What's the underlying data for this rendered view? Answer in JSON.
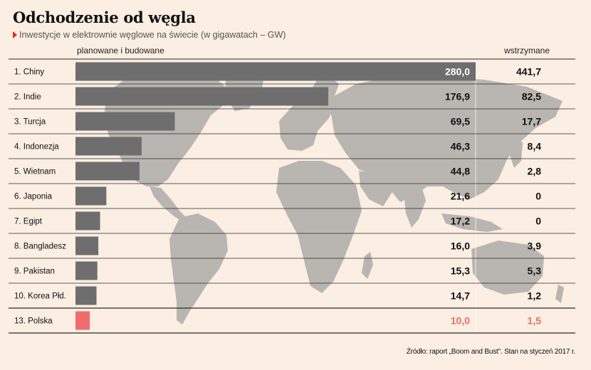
{
  "header": {
    "title": "Odchodzenie od węgla",
    "subtitle": "Inwestycje w elektrownie węglowe na świecie (w gigawatach – GW)"
  },
  "columns": {
    "planned": "planowane i budowane",
    "halted": "wstrzymane"
  },
  "footer": {
    "source": "Źródło: raport „Boom and Bust\". Stan na styczeń 2017 r."
  },
  "colors": {
    "background": "#fbeee2",
    "bar": "#6e6e6e",
    "highlight": "#f06b6b",
    "map": "#b9b5b0",
    "divider": "#2b2b2b"
  },
  "chart_data": {
    "type": "table",
    "title": "Odchodzenie od węgla",
    "subtitle": "Inwestycje w elektrownie węglowe na świecie (w gigawatach – GW)",
    "unit": "GW",
    "xlim": [
      0,
      280
    ],
    "categories": [
      "1. Chiny",
      "2. Indie",
      "3. Turcja",
      "4. Indonezja",
      "5. Wietnam",
      "6. Japonia",
      "7. Egipt",
      "8. Bangladesz",
      "9. Pakistan",
      "10. Korea Płd.",
      "13. Polska"
    ],
    "series": [
      {
        "name": "planowane i budowane",
        "values": [
          280.0,
          176.9,
          69.5,
          46.3,
          44.8,
          21.6,
          17.2,
          16.0,
          15.3,
          14.7,
          10.0
        ],
        "labels": [
          "280,0",
          "176,9",
          "69,5",
          "46,3",
          "44,8",
          "21,6",
          "17,2",
          "16,0",
          "15,3",
          "14,7",
          "10,0"
        ]
      },
      {
        "name": "wstrzymane",
        "values": [
          441.7,
          82.5,
          17.7,
          8.4,
          2.8,
          0,
          0,
          3.9,
          5.3,
          1.2,
          1.5
        ],
        "labels": [
          "441,7",
          "82,5",
          "17,7",
          "8,4",
          "2,8",
          "0",
          "0",
          "3,9",
          "5,3",
          "1,2",
          "1,5"
        ]
      }
    ],
    "highlight": "13. Polska"
  }
}
